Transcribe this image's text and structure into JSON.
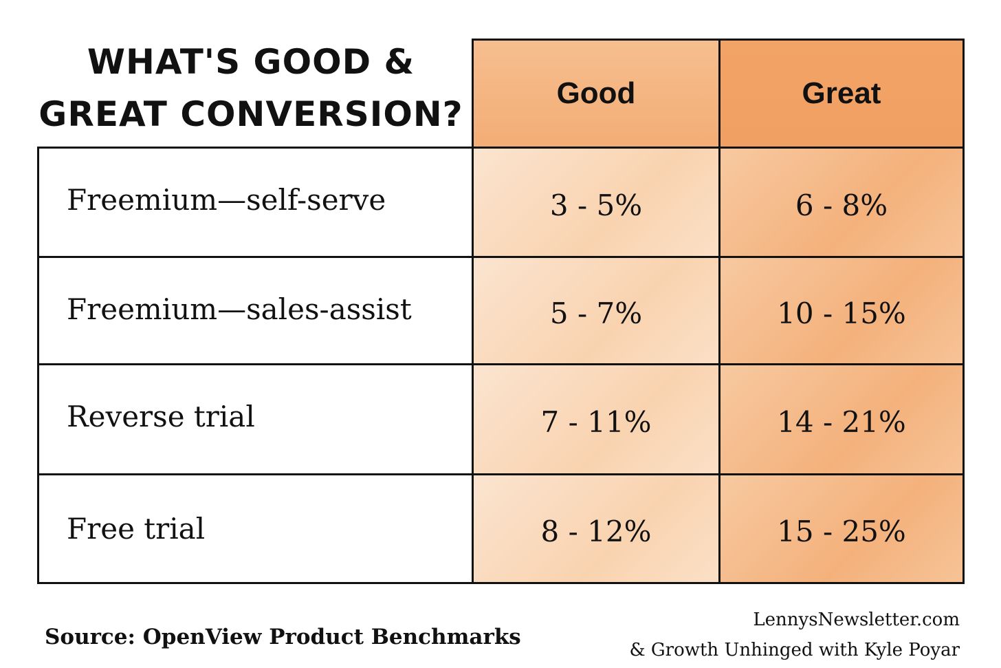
{
  "title": [
    "WHAT'S GOOD &",
    "GREAT CONVERSION?"
  ],
  "colors": {
    "good_header": "#f5b582",
    "great_header": "#f2a466",
    "good_cells": "#fadcc0",
    "great_cells": "#f5bf92",
    "border": "#111111"
  },
  "chart_data": {
    "type": "table",
    "columns": [
      "Good",
      "Great"
    ],
    "rows": [
      {
        "label": "Freemium—self-serve",
        "good": "3 - 5%",
        "great": "6 - 8%"
      },
      {
        "label": "Freemium—sales-assist",
        "good": "5 - 7%",
        "great": "10 - 15%"
      },
      {
        "label": "Reverse trial",
        "good": "7 - 11%",
        "great": "14 - 21%"
      },
      {
        "label": "Free trial",
        "good": "8 - 12%",
        "great": "15 - 25%"
      }
    ]
  },
  "footer": {
    "source": "Source: OpenView Product Benchmarks",
    "credit_1": "LennysNewsletter.com",
    "credit_2": "& Growth Unhinged with Kyle Poyar"
  }
}
